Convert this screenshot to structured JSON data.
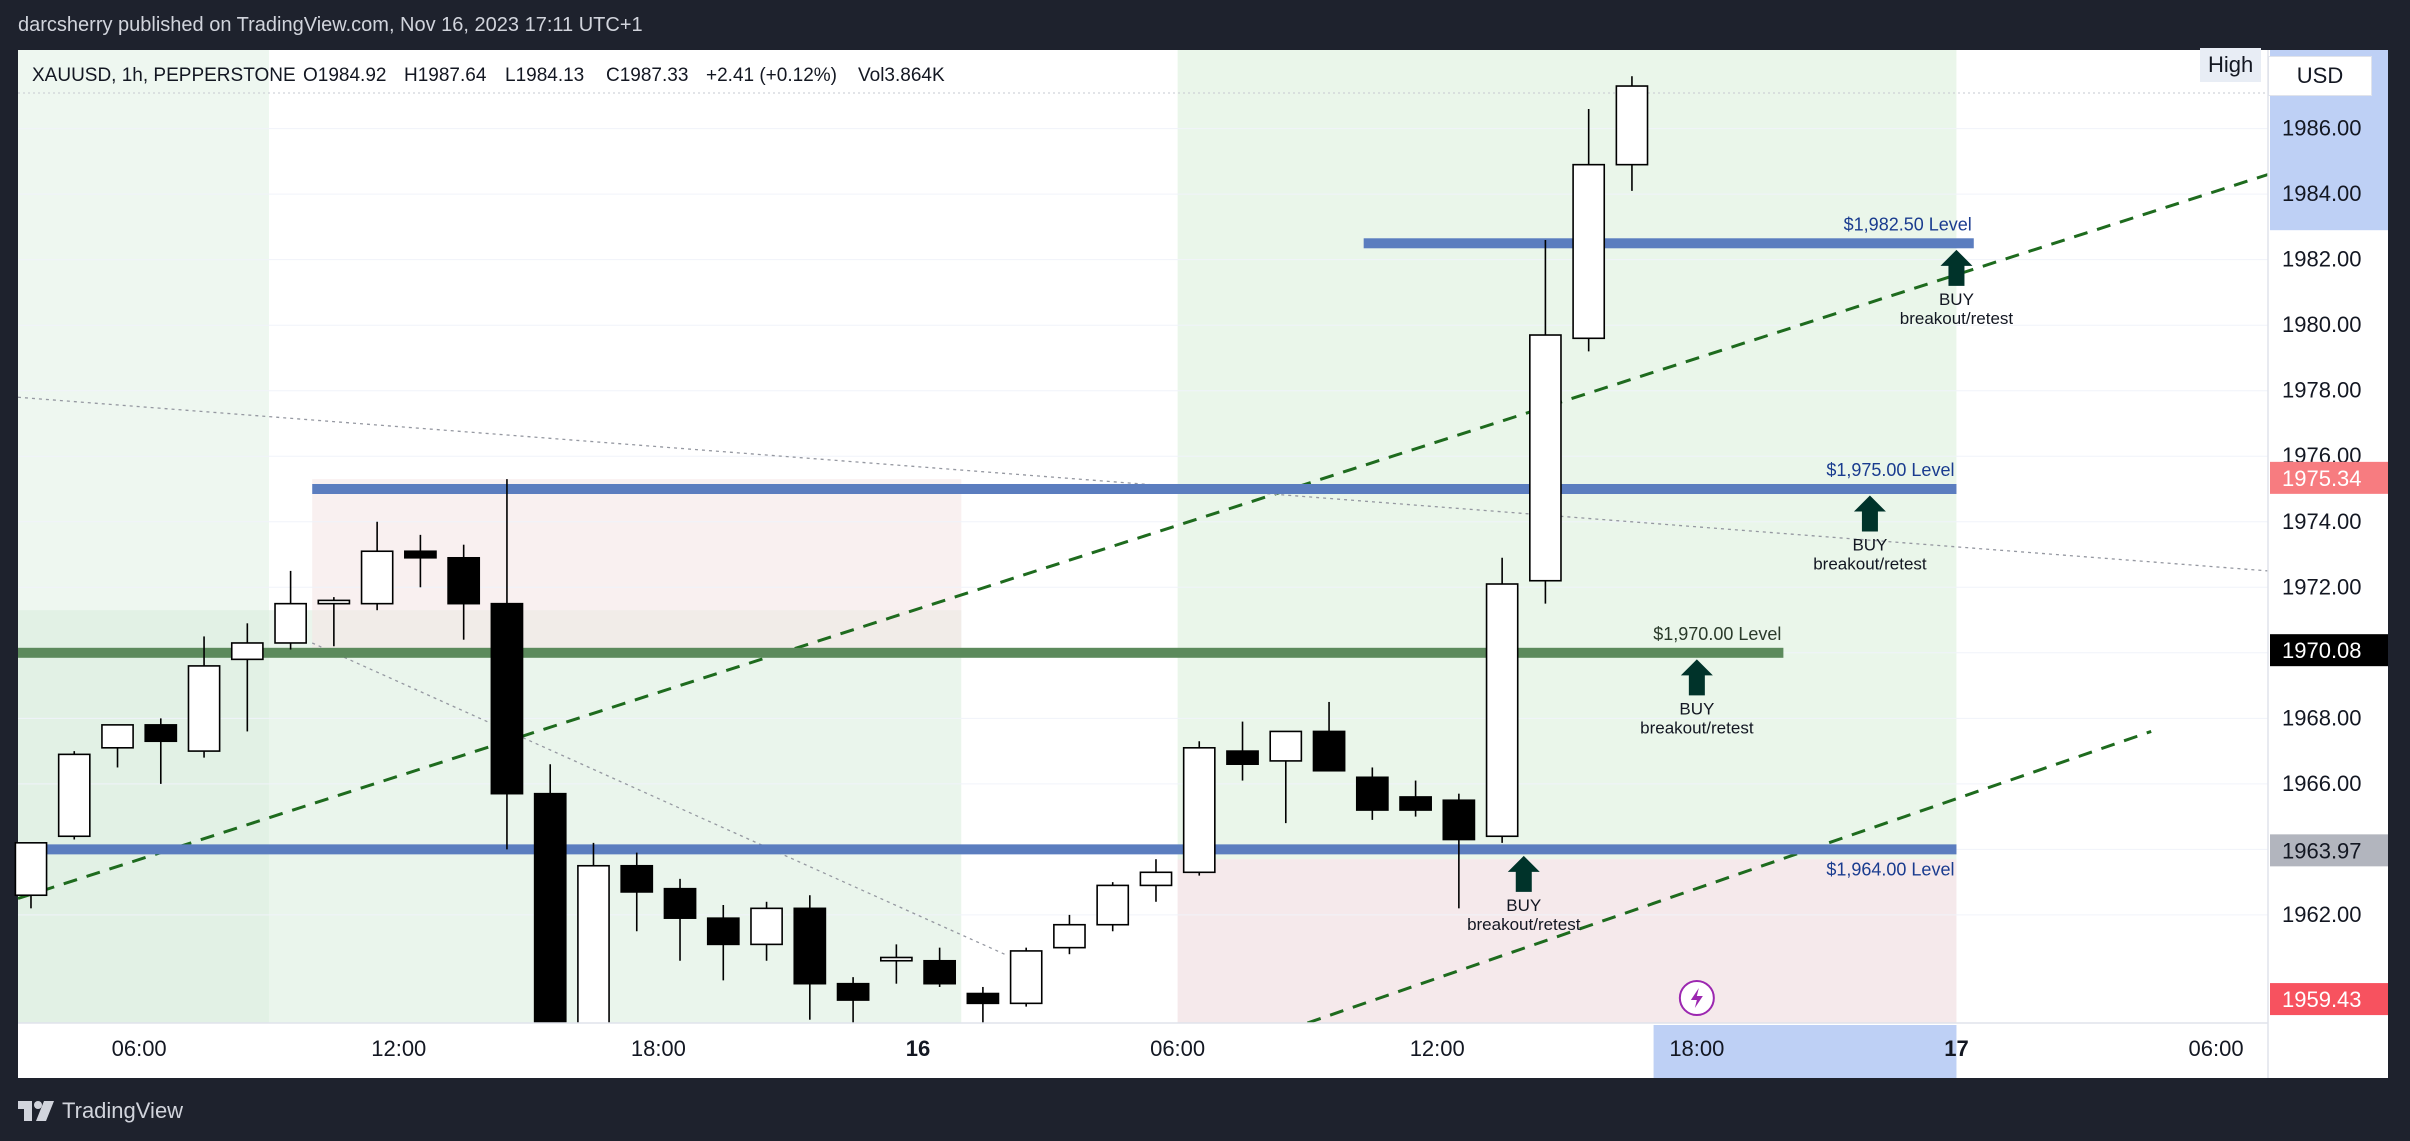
{
  "header": {
    "publisher_line": "darcsherry published on TradingView.com, Nov 16, 2023 17:11 UTC+1"
  },
  "legend": {
    "symbol": "XAUUSD, 1h, PEPPERSTONE",
    "open": "O1984.92",
    "high": "H1987.64",
    "low": "L1984.13",
    "close": "C1987.33",
    "change": "+2.41 (+0.12%)",
    "volume": "Vol3.864K"
  },
  "controls": {
    "currency": "USD",
    "high_label": "High"
  },
  "footer": {
    "brand": "TradingView"
  },
  "chart_data": {
    "type": "candlestick",
    "time_unit": "hour",
    "x_axis_ticks": [
      {
        "hour": 6,
        "label": "06:00",
        "bold": false
      },
      {
        "hour": 12,
        "label": "12:00",
        "bold": false
      },
      {
        "hour": 18,
        "label": "18:00",
        "bold": false
      },
      {
        "hour": 24,
        "label": "16",
        "bold": true
      },
      {
        "hour": 30,
        "label": "06:00",
        "bold": false
      },
      {
        "hour": 36,
        "label": "12:00",
        "bold": false
      },
      {
        "hour": 42,
        "label": "18:00",
        "bold": false
      },
      {
        "hour": 48,
        "label": "17",
        "bold": true
      },
      {
        "hour": 54,
        "label": "06:00",
        "bold": false
      }
    ],
    "y_axis_ticks": [
      1962,
      1964,
      1966,
      1968,
      1970,
      1972,
      1974,
      1976,
      1978,
      1980,
      1982,
      1984,
      1986
    ],
    "y_range": [
      1958.7,
      1988.4
    ],
    "x_range": [
      3.2,
      55.2
    ],
    "price_tags": [
      {
        "label": "1975.34",
        "price": 1975.34,
        "color": "#f77c80",
        "text": "#ffffff"
      },
      {
        "label": "1970.08",
        "price": 1970.08,
        "color": "#000000",
        "text": "#ffffff"
      },
      {
        "label": "1963.97",
        "price": 1963.97,
        "color": "#b2b5be",
        "text": "#131722"
      },
      {
        "label": "1959.43",
        "price": 1959.43,
        "color": "#f7525f",
        "text": "#ffffff"
      }
    ],
    "candles": [
      {
        "t": 3.5,
        "o": 1962.6,
        "h": 1964.2,
        "l": 1962.2,
        "c": 1964.2
      },
      {
        "t": 4.5,
        "o": 1964.4,
        "h": 1967.0,
        "l": 1964.3,
        "c": 1966.9
      },
      {
        "t": 5.5,
        "o": 1967.1,
        "h": 1967.6,
        "l": 1966.5,
        "c": 1967.8
      },
      {
        "t": 6.5,
        "o": 1967.8,
        "h": 1968.0,
        "l": 1966.0,
        "c": 1967.3
      },
      {
        "t": 7.5,
        "o": 1967.0,
        "h": 1970.5,
        "l": 1966.8,
        "c": 1969.6
      },
      {
        "t": 8.5,
        "o": 1969.8,
        "h": 1970.9,
        "l": 1967.6,
        "c": 1970.3
      },
      {
        "t": 9.5,
        "o": 1970.3,
        "h": 1972.5,
        "l": 1970.1,
        "c": 1971.5
      },
      {
        "t": 10.5,
        "o": 1971.5,
        "h": 1971.7,
        "l": 1970.2,
        "c": 1971.6
      },
      {
        "t": 11.5,
        "o": 1971.5,
        "h": 1974.0,
        "l": 1971.3,
        "c": 1973.1
      },
      {
        "t": 12.5,
        "o": 1973.1,
        "h": 1973.6,
        "l": 1972.0,
        "c": 1972.9
      },
      {
        "t": 13.5,
        "o": 1972.9,
        "h": 1973.3,
        "l": 1970.4,
        "c": 1971.5
      },
      {
        "t": 14.5,
        "o": 1971.5,
        "h": 1975.3,
        "l": 1964.0,
        "c": 1965.7
      },
      {
        "t": 15.5,
        "o": 1965.7,
        "h": 1966.6,
        "l": 1957.0,
        "c": 1958.4
      },
      {
        "t": 16.5,
        "o": 1958.6,
        "h": 1964.2,
        "l": 1958.5,
        "c": 1963.5
      },
      {
        "t": 17.5,
        "o": 1963.5,
        "h": 1963.9,
        "l": 1961.5,
        "c": 1962.7
      },
      {
        "t": 18.5,
        "o": 1962.8,
        "h": 1963.1,
        "l": 1960.6,
        "c": 1961.9
      },
      {
        "t": 19.5,
        "o": 1961.9,
        "h": 1962.3,
        "l": 1960.0,
        "c": 1961.1
      },
      {
        "t": 20.5,
        "o": 1961.1,
        "h": 1962.4,
        "l": 1960.6,
        "c": 1962.2
      },
      {
        "t": 21.5,
        "o": 1962.2,
        "h": 1962.6,
        "l": 1958.8,
        "c": 1959.9
      },
      {
        "t": 22.5,
        "o": 1959.9,
        "h": 1960.1,
        "l": 1958.7,
        "c": 1959.4
      },
      {
        "t": 23.5,
        "o": 1960.6,
        "h": 1961.1,
        "l": 1959.9,
        "c": 1960.7
      },
      {
        "t": 24.5,
        "o": 1960.6,
        "h": 1961.0,
        "l": 1959.8,
        "c": 1959.9
      },
      {
        "t": 25.5,
        "o": 1959.6,
        "h": 1959.8,
        "l": 1958.7,
        "c": 1959.3
      },
      {
        "t": 26.5,
        "o": 1959.3,
        "h": 1961.0,
        "l": 1959.2,
        "c": 1960.9
      },
      {
        "t": 27.5,
        "o": 1961.0,
        "h": 1962.0,
        "l": 1960.8,
        "c": 1961.7
      },
      {
        "t": 28.5,
        "o": 1961.7,
        "h": 1963.0,
        "l": 1961.5,
        "c": 1962.9
      },
      {
        "t": 29.5,
        "o": 1962.9,
        "h": 1963.7,
        "l": 1962.4,
        "c": 1963.3
      },
      {
        "t": 30.5,
        "o": 1963.3,
        "h": 1967.3,
        "l": 1963.2,
        "c": 1967.1
      },
      {
        "t": 31.5,
        "o": 1967.0,
        "h": 1967.9,
        "l": 1966.1,
        "c": 1966.6
      },
      {
        "t": 32.5,
        "o": 1966.7,
        "h": 1967.6,
        "l": 1964.8,
        "c": 1967.6
      },
      {
        "t": 33.5,
        "o": 1967.6,
        "h": 1968.5,
        "l": 1966.5,
        "c": 1966.4
      },
      {
        "t": 34.5,
        "o": 1966.2,
        "h": 1966.5,
        "l": 1964.9,
        "c": 1965.2
      },
      {
        "t": 35.5,
        "o": 1965.6,
        "h": 1966.1,
        "l": 1965.0,
        "c": 1965.2
      },
      {
        "t": 36.5,
        "o": 1965.5,
        "h": 1965.7,
        "l": 1962.2,
        "c": 1964.3
      },
      {
        "t": 37.5,
        "o": 1964.4,
        "h": 1972.9,
        "l": 1964.2,
        "c": 1972.1
      },
      {
        "t": 38.5,
        "o": 1972.2,
        "h": 1982.6,
        "l": 1971.5,
        "c": 1979.7
      },
      {
        "t": 39.5,
        "o": 1979.6,
        "h": 1986.6,
        "l": 1979.2,
        "c": 1984.9
      },
      {
        "t": 40.5,
        "o": 1984.9,
        "h": 1987.6,
        "l": 1984.1,
        "c": 1987.3
      }
    ],
    "levels": [
      {
        "label": "$1,982.50 Level",
        "price": 1982.5,
        "t_start": 34.3,
        "t_end": 48.4,
        "color": "#5b7dbf",
        "label_pos": "above-right"
      },
      {
        "label": "$1,975.00 Level",
        "price": 1975.0,
        "t_start": 10.0,
        "t_end": 48.0,
        "color": "#5b7dbf",
        "label_pos": "above-right"
      },
      {
        "label": "$1,970.00 Level",
        "price": 1970.0,
        "t_start": 3.2,
        "t_end": 44.0,
        "color": "#5c8a5c",
        "label_pos": "above-right"
      },
      {
        "label": "$1,964.00 Level",
        "price": 1964.0,
        "t_start": 3.2,
        "t_end": 48.0,
        "color": "#5b7dbf",
        "label_pos": "below-right"
      }
    ],
    "annotations": [
      {
        "line1": "BUY",
        "line2": "breakout/retest",
        "t": 48.0,
        "price": 1982.3
      },
      {
        "line1": "BUY",
        "line2": "breakout/retest",
        "t": 46.0,
        "price": 1974.8
      },
      {
        "line1": "BUY",
        "line2": "breakout/retest",
        "t": 42.0,
        "price": 1969.8
      },
      {
        "line1": "BUY",
        "line2": "breakout/retest",
        "t": 38.0,
        "price": 1963.8
      }
    ],
    "trendlines": [
      {
        "style": "dashed",
        "color": "#1e6b1e",
        "t1": 3.2,
        "p1": 1962.5,
        "t2": 55.2,
        "p2": 1984.6
      },
      {
        "style": "dashed",
        "color": "#1e6b1e",
        "t1": 33.0,
        "p1": 1958.7,
        "t2": 52.5,
        "p2": 1967.6
      },
      {
        "style": "dotted",
        "color": "#9598a1",
        "t1": 3.2,
        "p1": 1977.8,
        "t2": 55.2,
        "p2": 1972.5
      },
      {
        "style": "dotted",
        "color": "#9598a1",
        "t1": 10.0,
        "p1": 1970.3,
        "t2": 26.0,
        "p2": 1960.8
      }
    ],
    "zones": [
      {
        "t1": 3.2,
        "t2": 9.0,
        "p_top": 1988.4,
        "p_bottom": 1958.7,
        "color": "#e3f2e6",
        "opacity": 0.6
      },
      {
        "t1": 3.2,
        "t2": 25.0,
        "p_top": 1971.3,
        "p_bottom": 1958.7,
        "color": "#d6ecd9",
        "opacity": 0.5
      },
      {
        "t1": 10.0,
        "t2": 25.0,
        "p_top": 1975.3,
        "p_bottom": 1970.0,
        "color": "#f5e6e6",
        "opacity": 0.6
      },
      {
        "t1": 30.0,
        "t2": 48.0,
        "p_top": 1988.4,
        "p_bottom": 1963.7,
        "color": "#d8eed8",
        "opacity": 0.55
      },
      {
        "t1": 30.0,
        "t2": 48.0,
        "p_top": 1963.7,
        "p_bottom": 1958.7,
        "color": "#f1dfe3",
        "opacity": 0.7
      }
    ],
    "crosshair_x_band": {
      "t1": 41.0,
      "t2": 48.0,
      "label": "18:00"
    },
    "crosshair_y_band": {
      "p_top": 1988.4,
      "p_bottom": 1982.9
    }
  }
}
